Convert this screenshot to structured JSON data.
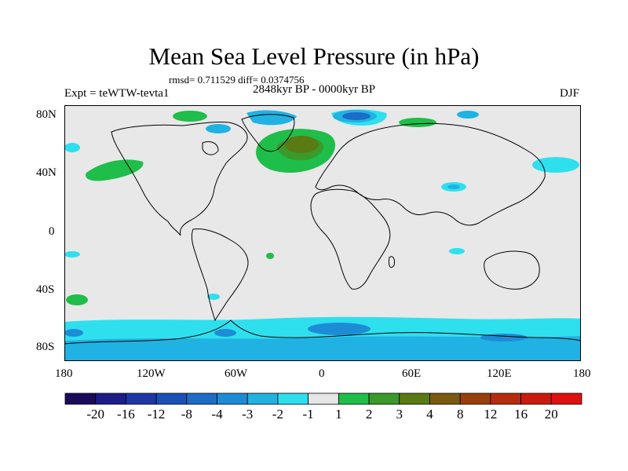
{
  "figure": {
    "title": "Mean Sea Level Pressure (in hPa)",
    "stats": "rmsd= 0.711529  diff= 0.0374756",
    "experiment": "Expt = teWTW-tevta1",
    "period": "2848kyr BP - 0000kyr BP",
    "season": "DJF"
  },
  "axes": {
    "x_ticks": [
      "180",
      "120W",
      "60W",
      "0",
      "60E",
      "120E",
      "180"
    ],
    "y_ticks": [
      "80N",
      "40N",
      "0",
      "40S",
      "80S"
    ]
  },
  "colorbar": {
    "labels": [
      "-20",
      "-16",
      "-12",
      "-8",
      "-4",
      "-3",
      "-2",
      "-1",
      "1",
      "2",
      "3",
      "4",
      "8",
      "12",
      "16",
      "20"
    ],
    "colors": [
      "#1a0a5a",
      "#1c1c8a",
      "#1e36a6",
      "#1a50b8",
      "#1c6cc8",
      "#1d8cd6",
      "#20b2e2",
      "#2ee0ee",
      "#e6e6e6",
      "#1fbd4a",
      "#3a9a2a",
      "#5a7a14",
      "#7a5a10",
      "#9a3e0c",
      "#b62c0c",
      "#cc1a10",
      "#e01010"
    ]
  }
}
